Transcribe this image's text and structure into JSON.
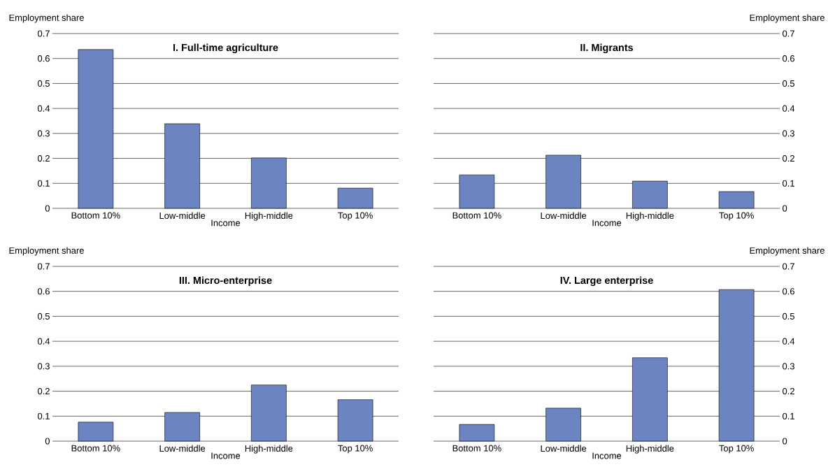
{
  "chart_data": [
    {
      "type": "bar",
      "title": "I.  Full-time agriculture",
      "xlabel": "Income",
      "ylabel": "Employment share",
      "categories": [
        "Bottom 10%",
        "Low-middle",
        "High-middle",
        "Top 10%"
      ],
      "values": [
        0.636,
        0.339,
        0.202,
        0.081
      ],
      "color": "#6b84c2",
      "ylim": [
        0,
        0.7
      ],
      "yticks": [
        0,
        0.1,
        0.2,
        0.3,
        0.4,
        0.5,
        0.6,
        0.7
      ],
      "grid": "y"
    },
    {
      "type": "bar",
      "title": "II.  Migrants",
      "xlabel": "Income",
      "ylabel": "Employment share",
      "categories": [
        "Bottom 10%",
        "Low-middle",
        "High-middle",
        "Top 10%"
      ],
      "values": [
        0.134,
        0.213,
        0.109,
        0.067
      ],
      "color": "#6b84c2",
      "ylim": [
        0,
        0.7
      ],
      "yticks": [
        0,
        0.1,
        0.2,
        0.3,
        0.4,
        0.5,
        0.6,
        0.7
      ],
      "grid": "y"
    },
    {
      "type": "bar",
      "title": "III.  Micro-enterprise",
      "xlabel": "Income",
      "ylabel": "Employment share",
      "categories": [
        "Bottom 10%",
        "Low-middle",
        "High-middle",
        "Top 10%"
      ],
      "values": [
        0.076,
        0.115,
        0.225,
        0.166
      ],
      "color": "#6b84c2",
      "ylim": [
        0,
        0.7
      ],
      "yticks": [
        0,
        0.1,
        0.2,
        0.3,
        0.4,
        0.5,
        0.6,
        0.7
      ],
      "grid": "y"
    },
    {
      "type": "bar",
      "title": "IV.  Large enterprise",
      "xlabel": "Income",
      "ylabel": "Employment share",
      "categories": [
        "Bottom 10%",
        "Low-middle",
        "High-middle",
        "Top 10%"
      ],
      "values": [
        0.067,
        0.132,
        0.334,
        0.607
      ],
      "color": "#6b84c2",
      "ylim": [
        0,
        0.7
      ],
      "yticks": [
        0,
        0.1,
        0.2,
        0.3,
        0.4,
        0.5,
        0.6,
        0.7
      ],
      "grid": "y"
    }
  ]
}
